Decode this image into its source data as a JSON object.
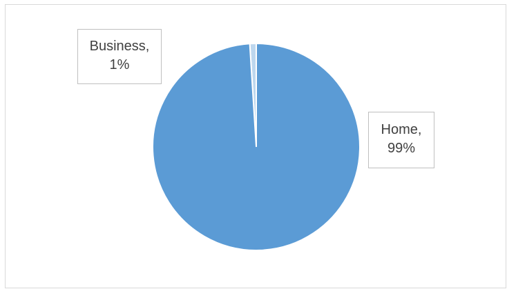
{
  "chart_data": {
    "type": "pie",
    "categories": [
      "Business",
      "Home"
    ],
    "values": [
      1,
      99
    ],
    "colors": [
      "#bdd7ee",
      "#5b9bd5"
    ],
    "data_labels": [
      {
        "category": "Business",
        "percent": "1%"
      },
      {
        "category": "Home",
        "percent": "99%"
      }
    ],
    "title": "",
    "legend": "none"
  },
  "labels": {
    "business_name": "Business,",
    "business_pct": "1%",
    "home_name": "Home,",
    "home_pct": "99%"
  }
}
